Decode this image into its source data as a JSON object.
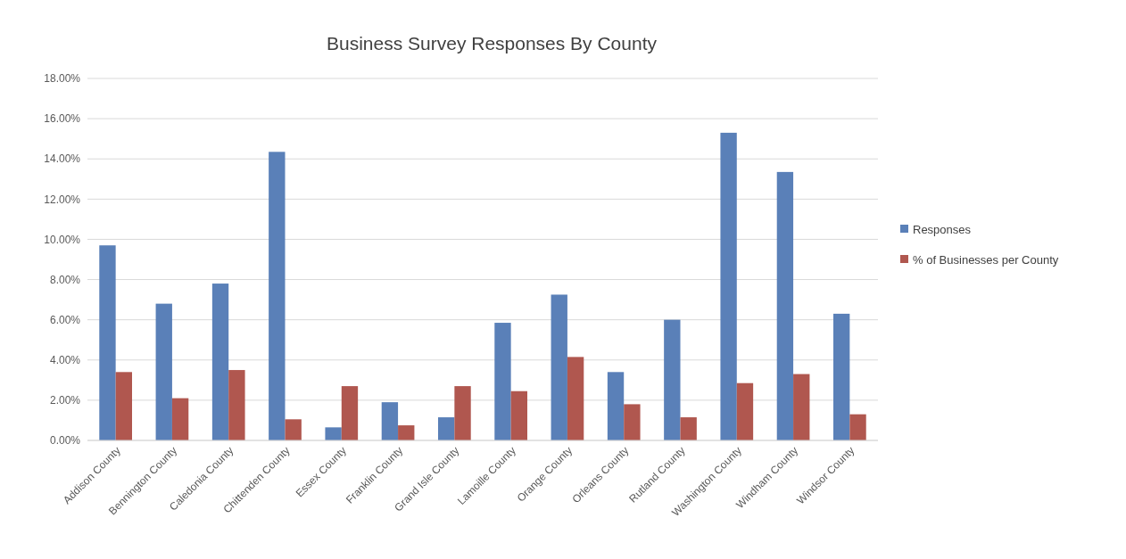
{
  "chart_data": {
    "type": "bar",
    "title": "Business Survey Responses By County",
    "categories": [
      "Addison County",
      "Bennington County",
      "Caledonia County",
      "Chittenden County",
      "Essex County",
      "Franklin County",
      "Grand Isle County",
      "Lamoille County",
      "Orange County",
      "Orleans County",
      "Rutland County",
      "Washington County",
      "Windham County",
      "Windsor County"
    ],
    "series": [
      {
        "name": "Responses",
        "color": "#5a80b8",
        "values": [
          9.7,
          6.8,
          7.8,
          14.35,
          0.65,
          1.9,
          1.15,
          5.85,
          7.25,
          3.4,
          6.0,
          15.3,
          13.35,
          6.3
        ]
      },
      {
        "name": "% of Businesses per County",
        "color": "#b0574f",
        "values": [
          3.4,
          2.1,
          3.5,
          1.05,
          2.7,
          0.75,
          2.7,
          2.45,
          4.15,
          1.8,
          1.15,
          2.85,
          3.3,
          1.3
        ]
      }
    ],
    "ylim": [
      0,
      18
    ],
    "yticks": [
      {
        "value": 0,
        "label": "0.00%"
      },
      {
        "value": 2,
        "label": "2.00%"
      },
      {
        "value": 4,
        "label": "4.00%"
      },
      {
        "value": 6,
        "label": "6.00%"
      },
      {
        "value": 8,
        "label": "8.00%"
      },
      {
        "value": 10,
        "label": "10.00%"
      },
      {
        "value": 12,
        "label": "12.00%"
      },
      {
        "value": 14,
        "label": "14.00%"
      },
      {
        "value": 16,
        "label": "16.00%"
      },
      {
        "value": 18,
        "label": "18.00%"
      }
    ],
    "grid": "y",
    "legend": "right"
  }
}
